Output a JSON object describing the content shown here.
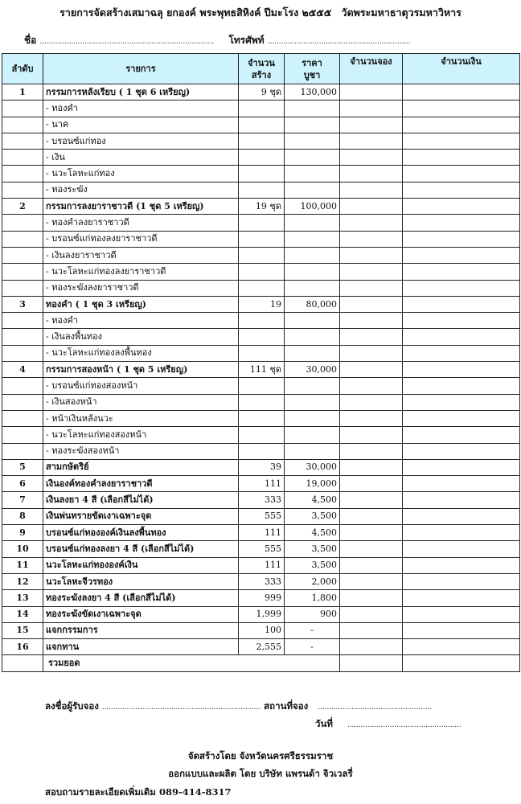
{
  "title": {
    "main": "รายการจัดสร้างเสมาฉลุ ยกองค์ พระพุทธสิหิงค์ ปีมะโรง ๒๕๕๕",
    "temple": "วัดพระมหาธาตุวรมหาวิหาร"
  },
  "form": {
    "name_label": "ชื่อ",
    "name_value": "..............................................................................",
    "phone_label": "โทรศัพท์",
    "phone_value": "................................................................"
  },
  "table": {
    "headers": {
      "no": "ลำดับ",
      "item": "รายการ",
      "qty_line1": "จำนวน",
      "qty_line2": "สร้าง",
      "price_line1": "ราคา",
      "price_line2": "บูชา",
      "reserve": "จำนวนจอง",
      "amount": "จำนวนเงิน"
    },
    "rows": [
      {
        "no": "1",
        "item": "กรรมการหลังเรียบ   ( 1 ชุด 6 เหรียญ)",
        "qty": "9 ชุด",
        "price": "130,000"
      },
      {
        "item": "- ทองคำ"
      },
      {
        "item": "-  นาค"
      },
      {
        "item": "- บรอนซ์แก่ทอง"
      },
      {
        "item": "- เงิน"
      },
      {
        "item": "- นวะโลหะแก่ทอง"
      },
      {
        "item": "- ทองระฆัง"
      },
      {
        "no": "2",
        "item": "กรรมการลงยาราชาวดี (1 ชุด 5 เหรียญ)",
        "qty": "19 ชุด",
        "price": "100,000"
      },
      {
        "item": "- ทองคำลงยาราชาวดี"
      },
      {
        "item": "- บรอนซ์แก่ทองลงยาราชาวดี"
      },
      {
        "item": "- เงินลงยาราชาวดี"
      },
      {
        "item": "- นวะโลหะแก่ทองลงยาราชาวดี"
      },
      {
        "item": "- ทองระฆังลงยาราชาวดี"
      },
      {
        "no": "3",
        "item": "ทองคำ ( 1 ชุด 3 เหรียญ)",
        "qty": "19",
        "price": "80,000"
      },
      {
        "item": "- ทองคำ"
      },
      {
        "item": "- เงินลงพื้นทอง"
      },
      {
        "item": "- นวะโลหะแก่ทองลงพื้นทอง"
      },
      {
        "no": "4",
        "item": "กรรมการสองหน้า ( 1 ชุด 5 เหรียญ)",
        "qty": "111 ชุด",
        "price": "30,000"
      },
      {
        "item": "- บรอนซ์แก่ทองสองหน้า"
      },
      {
        "item": "- เงินสองหน้า"
      },
      {
        "item": "-  หน้าเงินหลังนวะ"
      },
      {
        "item": "- นวะโลหะแก่ทองสองหน้า"
      },
      {
        "item": "- ทองระฆังสองหน้า"
      },
      {
        "no": "5",
        "item": "สามกษัตริย์",
        "qty": "39",
        "price": "30,000"
      },
      {
        "no": "6",
        "item": "เงินองค์ทองคำลงยาราชาวดี",
        "qty": "111",
        "price": "19,000"
      },
      {
        "no": "7",
        "item": "เงินลงยา 4 สี    (เลือกสีไม่ได้)",
        "qty": "333",
        "price": "4,500"
      },
      {
        "no": "8",
        "item": "เงินพ่นทรายขัดเงาเฉพาะจุด",
        "qty": "555",
        "price": "3,500"
      },
      {
        "no": "9",
        "item": "บรอนซ์แก่ทององค์เงินลงพื้นทอง",
        "qty": "111",
        "price": "4,500"
      },
      {
        "no": "10",
        "item": "บรอนซ์แก่ทองลงยา 4 สี (เลือกสีไม่ได้)",
        "qty": "555",
        "price": "3,500"
      },
      {
        "no": "11",
        "item": "นวะโลหะแก่ทององค์เงิน",
        "qty": "111",
        "price": "3,500"
      },
      {
        "no": "12",
        "item": "นวะโลหะจีวรทอง",
        "qty": "333",
        "price": "2,000"
      },
      {
        "no": "13",
        "item": "ทองระฆังลงยา 4 สี (เลือกสีไม่ได้)",
        "qty": "999",
        "price": "1,800"
      },
      {
        "no": "14",
        "item": "ทองระฆังขัดเงาเฉพาะจุด",
        "qty": "1,999",
        "price": "900"
      },
      {
        "no": "15",
        "item": "แจกกรรมการ",
        "qty": "100",
        "price": "-"
      },
      {
        "no": "16",
        "item": "แจกทาน",
        "qty": "2,555",
        "price": "-"
      }
    ],
    "total_label": "รวมยอด"
  },
  "footer": {
    "signer_label": "ลงชื่อผู้รับจอง",
    "signer_value": ".......................................................................",
    "place_label": "สถานที่จอง",
    "place_value": "...................................................",
    "date_label": "วันที่",
    "date_value": "...................................................",
    "organizer": "จัดสร้างโดย จังหวัดนครศรีธรรมราช",
    "producer": "ออกแบบและผลิต โดย บริษัท แพรนด้า จิวเวลรี่",
    "inquiry": "สอบถามรายละเอียดเพิ่มเติม   089-414-8317"
  },
  "colors": {
    "header_bg": "#cdf3fc",
    "border": "#222222"
  }
}
